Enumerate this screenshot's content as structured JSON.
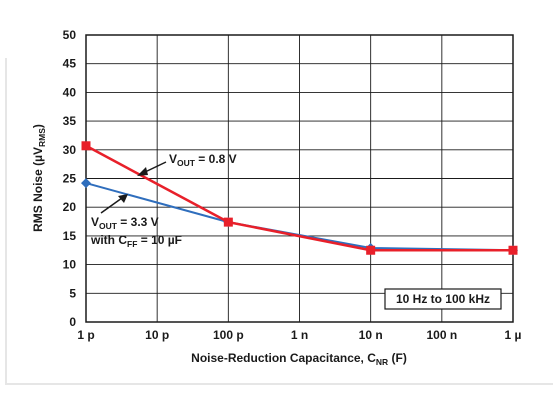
{
  "chart_data": {
    "type": "line",
    "x": [
      "1 p",
      "10 p",
      "100 p",
      "1 n",
      "10 n",
      "100 n",
      "1 µ"
    ],
    "x_scale": "log",
    "xlabel": "Noise-Reduction Capacitance, C",
    "xlabel_sub": "NR",
    "xlabel_suffix": " (F)",
    "ylabel": "RMS Noise (µV",
    "ylabel_sub": "RMS",
    "ylabel_suffix": ")",
    "ylim": [
      0,
      50
    ],
    "yticks": [
      0,
      5,
      10,
      15,
      20,
      25,
      30,
      35,
      40,
      45,
      50
    ],
    "grid": true,
    "series": [
      {
        "name": "V_OUT = 3.3 V with C_FF = 10 µF",
        "color": "#2f6ebd",
        "marker": "diamond",
        "points": [
          {
            "x": "1 p",
            "y": 24.2
          },
          {
            "x": "100 p",
            "y": 17.4
          },
          {
            "x": "10 n",
            "y": 12.9
          },
          {
            "x": "1 µ",
            "y": 12.5
          }
        ]
      },
      {
        "name": "V_OUT = 0.8 V",
        "color": "#e8202a",
        "marker": "square",
        "points": [
          {
            "x": "1 p",
            "y": 30.7
          },
          {
            "x": "100 p",
            "y": 17.4
          },
          {
            "x": "10 n",
            "y": 12.5
          },
          {
            "x": "1 µ",
            "y": 12.5
          }
        ]
      }
    ],
    "annotations": {
      "red_label": {
        "prefix": "V",
        "sub": "OUT",
        "suffix": " = 0.8 V"
      },
      "blue_label_line1": {
        "prefix": "V",
        "sub": "OUT",
        "suffix": " = 3.3 V"
      },
      "blue_label_line2": {
        "prefix": "with C",
        "sub": "FF",
        "suffix": " = 10 µF"
      },
      "range_box": "10 Hz to 100 kHz"
    }
  }
}
